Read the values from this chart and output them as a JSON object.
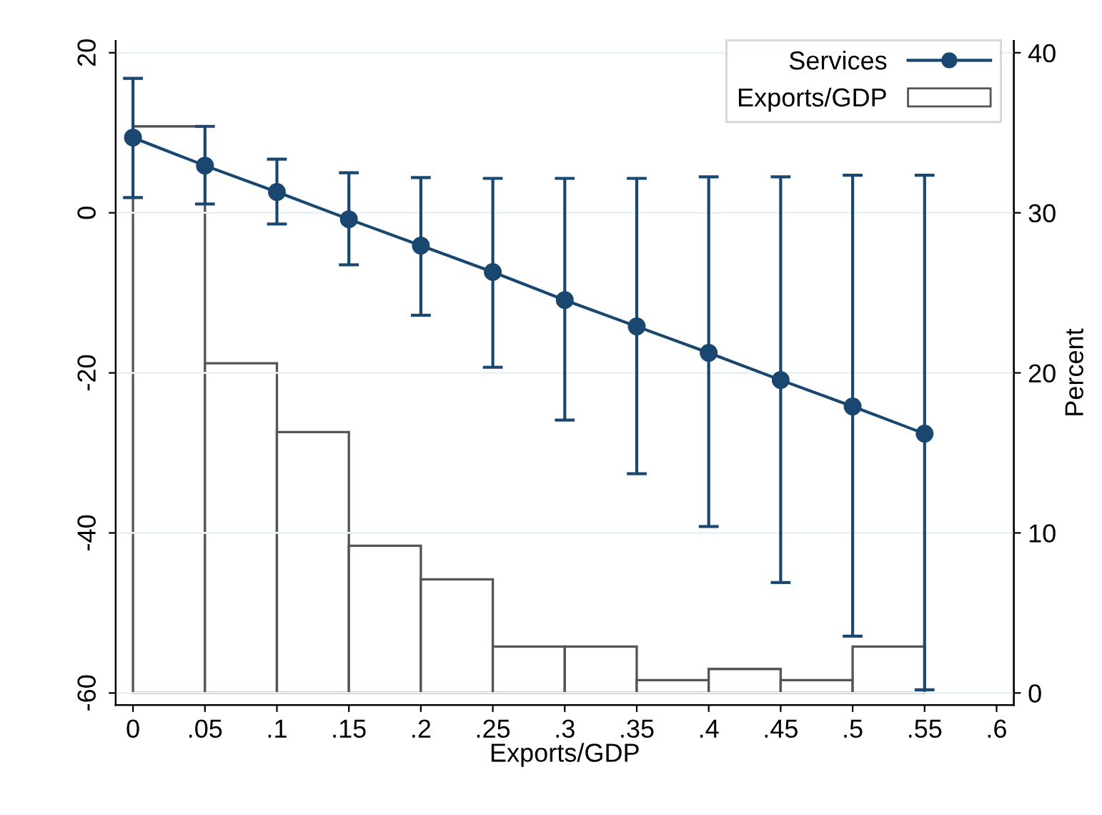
{
  "chart_data": {
    "type": "line",
    "xlabel": "Exports/GDP",
    "y2label": "Percent",
    "xlim": [
      -0.012,
      0.612
    ],
    "xticks": [
      {
        "value": 0,
        "label": "0"
      },
      {
        "value": 0.05,
        "label": ".05"
      },
      {
        "value": 0.1,
        "label": ".1"
      },
      {
        "value": 0.15,
        "label": ".15"
      },
      {
        "value": 0.2,
        "label": ".2"
      },
      {
        "value": 0.25,
        "label": ".25"
      },
      {
        "value": 0.3,
        "label": ".3"
      },
      {
        "value": 0.35,
        "label": ".35"
      },
      {
        "value": 0.4,
        "label": ".4"
      },
      {
        "value": 0.45,
        "label": ".45"
      },
      {
        "value": 0.5,
        "label": ".5"
      },
      {
        "value": 0.55,
        "label": ".55"
      },
      {
        "value": 0.6,
        "label": ".6"
      }
    ],
    "ylim": [
      -61.5,
      21.5
    ],
    "yticks": [
      -60,
      -40,
      -20,
      0,
      20
    ],
    "y2lim": [
      -0.75,
      40.75
    ],
    "y2ticks": [
      0,
      10,
      20,
      30,
      40
    ],
    "grid": "y",
    "legend": "top right",
    "marker": "circle",
    "series": [
      {
        "name": "Services",
        "color": "#1a476f",
        "x": [
          0,
          0.05,
          0.1,
          0.15,
          0.2,
          0.25,
          0.3,
          0.35,
          0.4,
          0.45,
          0.5,
          0.55
        ],
        "values": [
          9.4,
          5.9,
          2.6,
          -0.8,
          -4.1,
          -7.4,
          -10.9,
          -14.2,
          -17.5,
          -20.9,
          -24.2,
          -27.6
        ],
        "errors": [
          [
            1.9,
            16.8
          ],
          [
            1.1,
            10.8
          ],
          [
            -1.4,
            6.7
          ],
          [
            -6.5,
            5.0
          ],
          [
            -12.8,
            4.4
          ],
          [
            -19.3,
            4.3
          ],
          [
            -25.9,
            4.3
          ],
          [
            -32.6,
            4.3
          ],
          [
            -39.2,
            4.5
          ],
          [
            -46.2,
            4.5
          ],
          [
            -52.9,
            4.7
          ],
          [
            -59.6,
            4.7
          ]
        ]
      },
      {
        "name": "Exports/GDP",
        "type": "histogram",
        "axis": "y2",
        "color": "#ffffff",
        "bins": [
          0,
          0.05,
          0.1,
          0.15,
          0.2,
          0.25,
          0.3,
          0.35,
          0.4,
          0.45,
          0.5,
          0.55
        ],
        "values": [
          35.4,
          20.6,
          16.3,
          9.2,
          7.1,
          2.9,
          2.9,
          0.8,
          1.5,
          0.8,
          2.9
        ]
      }
    ]
  }
}
